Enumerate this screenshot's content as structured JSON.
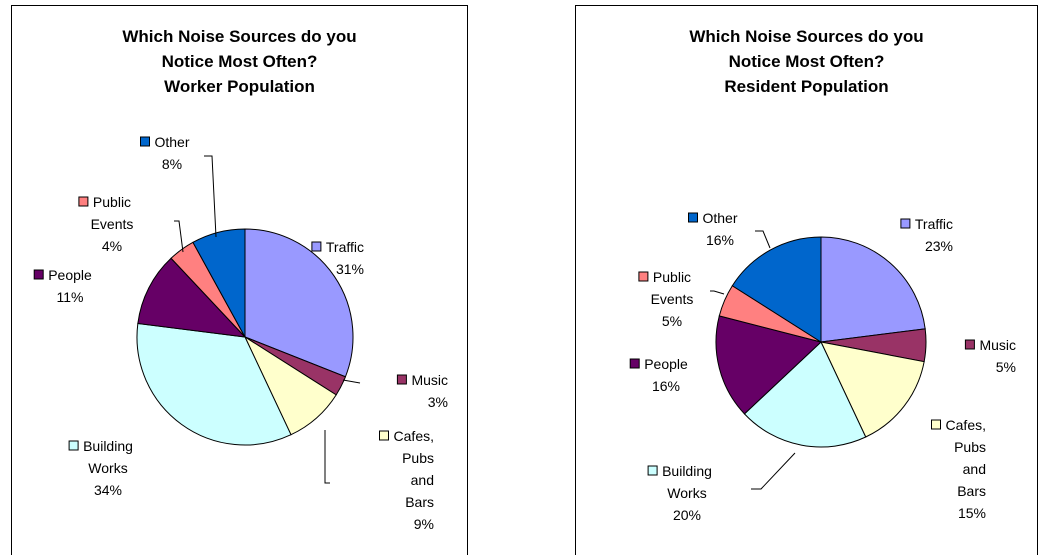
{
  "chart_data": [
    {
      "type": "pie",
      "title": [
        "Which Noise Sources do you",
        "Notice Most Often?",
        "Worker Population"
      ],
      "slices": [
        {
          "label": [
            "Traffic"
          ],
          "value": 31,
          "value_label": "31%",
          "color": "#9999ff"
        },
        {
          "label": [
            "Music"
          ],
          "value": 3,
          "value_label": "3%",
          "color": "#993366"
        },
        {
          "label": [
            "Cafes,",
            "Pubs",
            "and",
            "Bars"
          ],
          "value": 9,
          "value_label": "9%",
          "color": "#ffffcc"
        },
        {
          "label": [
            "Building",
            "Works"
          ],
          "value": 34,
          "value_label": "34%",
          "color": "#ccffff"
        },
        {
          "label": [
            "People"
          ],
          "value": 11,
          "value_label": "11%",
          "color": "#660066"
        },
        {
          "label": [
            "Public",
            "Events"
          ],
          "value": 4,
          "value_label": "4%",
          "color": "#ff8080"
        },
        {
          "label": [
            "Other"
          ],
          "value": 8,
          "value_label": "8%",
          "color": "#0066cc"
        }
      ],
      "legend": "none",
      "data_labels": "category name, legend key and percentage"
    },
    {
      "type": "pie",
      "title": [
        "Which Noise Sources do you",
        "Notice Most Often?",
        "Resident Population"
      ],
      "slices": [
        {
          "label": [
            "Traffic"
          ],
          "value": 23,
          "value_label": "23%",
          "color": "#9999ff"
        },
        {
          "label": [
            "Music"
          ],
          "value": 5,
          "value_label": "5%",
          "color": "#993366"
        },
        {
          "label": [
            "Cafes,",
            "Pubs",
            "and",
            "Bars"
          ],
          "value": 15,
          "value_label": "15%",
          "color": "#ffffcc"
        },
        {
          "label": [
            "Building",
            "Works"
          ],
          "value": 20,
          "value_label": "20%",
          "color": "#ccffff"
        },
        {
          "label": [
            "People"
          ],
          "value": 16,
          "value_label": "16%",
          "color": "#660066"
        },
        {
          "label": [
            "Public",
            "Events"
          ],
          "value": 5,
          "value_label": "5%",
          "color": "#ff8080"
        },
        {
          "label": [
            "Other"
          ],
          "value": 16,
          "value_label": "16%",
          "color": "#0066cc"
        }
      ],
      "legend": "none",
      "data_labels": "category name, legend key and percentage"
    }
  ]
}
